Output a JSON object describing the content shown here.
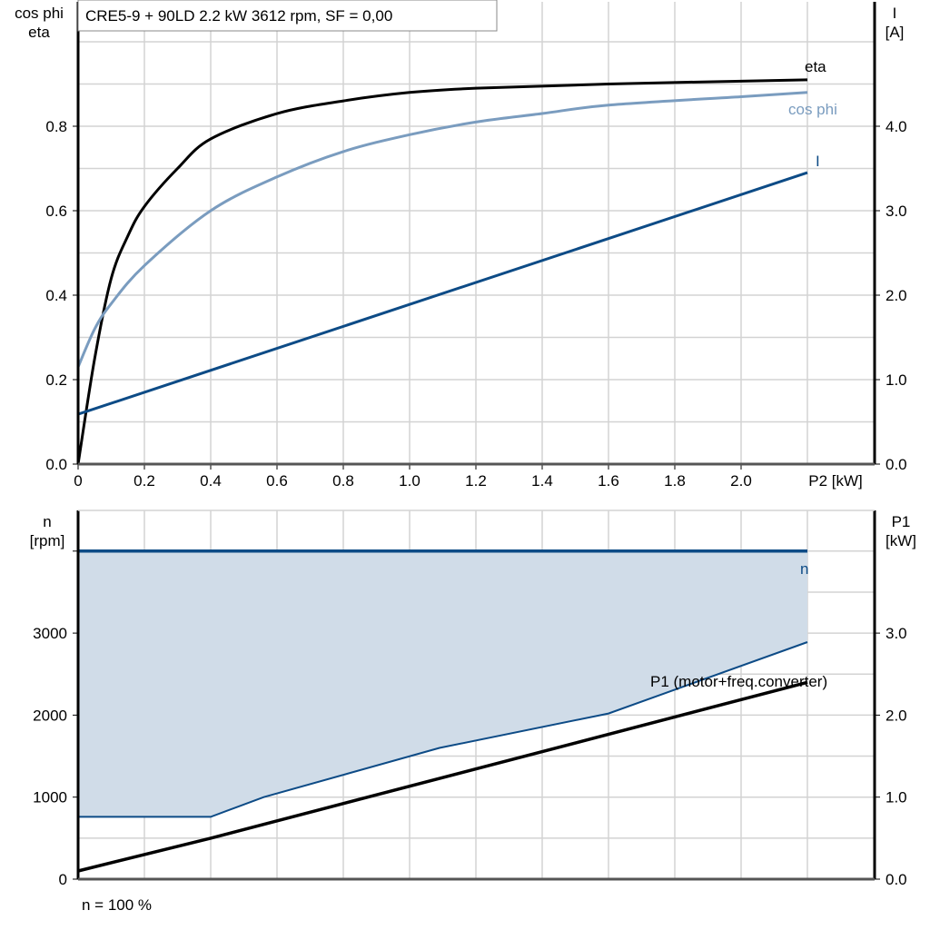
{
  "chart_data": [
    {
      "type": "line",
      "title": "CRE5-9 + 90LD   2.2 kW   3612 rpm, SF = 0,00",
      "ylabel": [
        "cos phi",
        "eta"
      ],
      "y2label": [
        "I",
        "[A]"
      ],
      "xlabel": "P2 [kW]",
      "xlim": [
        0,
        2.4
      ],
      "ylim": [
        0,
        1.095
      ],
      "y2lim": [
        0,
        5.475
      ],
      "xticks": [
        "0",
        "0.2",
        "0.4",
        "0.6",
        "0.8",
        "1.0",
        "1.2",
        "1.4",
        "1.6",
        "1.8",
        "2.0"
      ],
      "yticks": [
        "0.0",
        "0.2",
        "0.4",
        "0.6",
        "0.8"
      ],
      "y2ticks": [
        "0.0",
        "1.0",
        "2.0",
        "3.0",
        "4.0"
      ],
      "grid": true,
      "series": [
        {
          "name": "eta",
          "axis": "left",
          "color": "#000000",
          "x": [
            0,
            0.05,
            0.1,
            0.15,
            0.2,
            0.3,
            0.4,
            0.6,
            0.8,
            1.0,
            1.2,
            1.6,
            2.2
          ],
          "y": [
            0,
            0.25,
            0.44,
            0.54,
            0.61,
            0.7,
            0.77,
            0.83,
            0.86,
            0.88,
            0.89,
            0.9,
            0.91
          ]
        },
        {
          "name": "cos phi",
          "axis": "left",
          "color": "#7a9cbf",
          "x": [
            0,
            0.05,
            0.1,
            0.2,
            0.4,
            0.6,
            0.8,
            1.0,
            1.2,
            1.4,
            1.6,
            2.0,
            2.2
          ],
          "y": [
            0.23,
            0.32,
            0.38,
            0.47,
            0.6,
            0.68,
            0.74,
            0.78,
            0.81,
            0.83,
            0.85,
            0.87,
            0.88
          ]
        },
        {
          "name": "I",
          "axis": "right",
          "color": "#0d4b86",
          "x": [
            0,
            2.2
          ],
          "y": [
            0.59,
            3.45
          ]
        }
      ]
    },
    {
      "type": "line",
      "ylabel": [
        "n",
        "[rpm]"
      ],
      "y2label": [
        "P1",
        "[kW]"
      ],
      "xlim": [
        0,
        2.4
      ],
      "ylim": [
        0,
        4500
      ],
      "y2lim": [
        0,
        4.5
      ],
      "yticks": [
        "0",
        "1000",
        "2000",
        "3000"
      ],
      "y2ticks": [
        "0.0",
        "1.0",
        "2.0",
        "3.0"
      ],
      "grid": true,
      "footnote": "n = 100 %",
      "fill_color": "#d0dce8",
      "series": [
        {
          "name": "n",
          "axis": "left",
          "color": "#0d4b86",
          "x": [
            0,
            2.2
          ],
          "y": [
            4000,
            4000
          ]
        },
        {
          "axis": "left",
          "color": "#0d4b86",
          "x": [
            0,
            0.4,
            0.56,
            1.09,
            1.6,
            2.2
          ],
          "y": [
            760,
            760,
            1000,
            1600,
            2020,
            2890
          ]
        },
        {
          "name": "P1 (motor+freq.converter)",
          "axis": "right",
          "color": "#000000",
          "x": [
            0,
            0.4,
            2.2
          ],
          "y": [
            0.1,
            0.5,
            2.4
          ]
        }
      ]
    }
  ]
}
